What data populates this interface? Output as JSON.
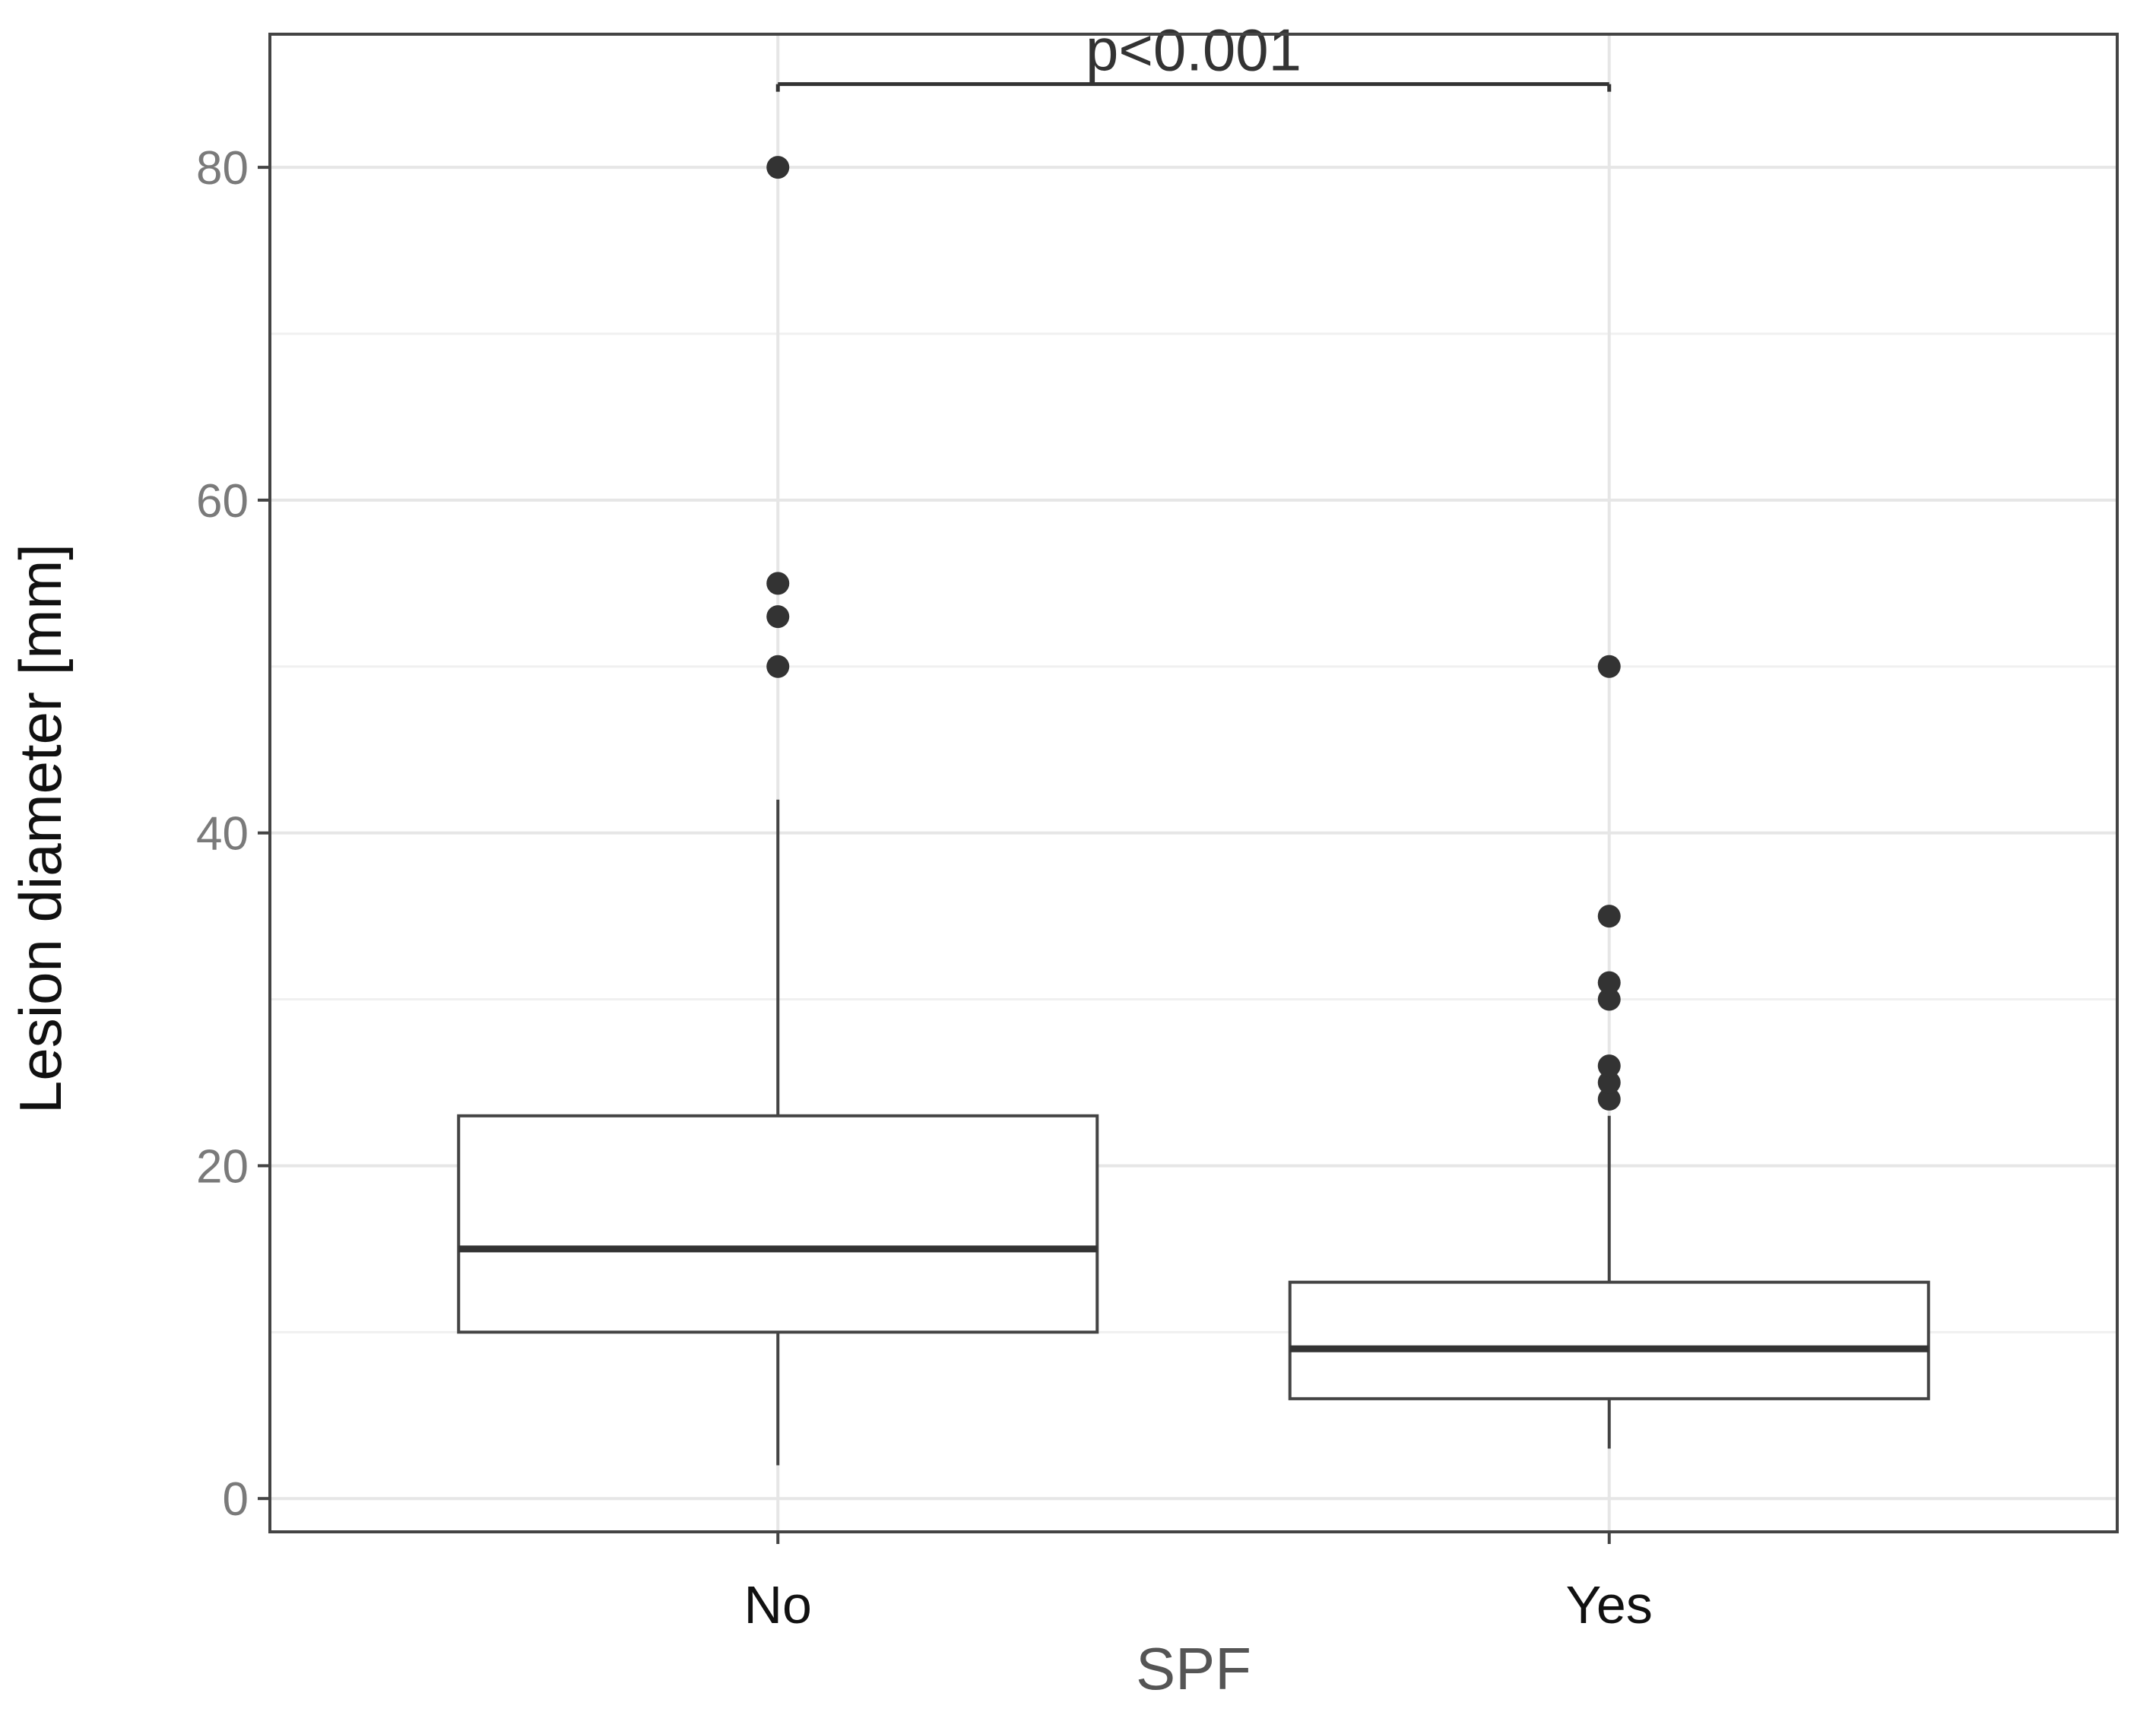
{
  "chart_data": {
    "type": "boxplot",
    "xlabel": "SPF",
    "ylabel": "Lesion diameter [mm]",
    "ylim": [
      -2,
      88
    ],
    "yticks": [
      0,
      20,
      40,
      60,
      80
    ],
    "grid": true,
    "categories": [
      "No",
      "Yes"
    ],
    "boxes": [
      {
        "category": "No",
        "whisker_low": 2,
        "q1": 10,
        "median": 15,
        "q3": 23,
        "whisker_high": 42,
        "outliers": [
          50,
          53,
          55,
          80
        ]
      },
      {
        "category": "Yes",
        "whisker_low": 3,
        "q1": 6,
        "median": 9,
        "q3": 13,
        "whisker_high": 23,
        "outliers": [
          24,
          25,
          26,
          30,
          31,
          35,
          50
        ]
      }
    ],
    "annotations": [
      {
        "text": "p<0.001",
        "from": "No",
        "to": "Yes",
        "y": 85
      }
    ]
  }
}
